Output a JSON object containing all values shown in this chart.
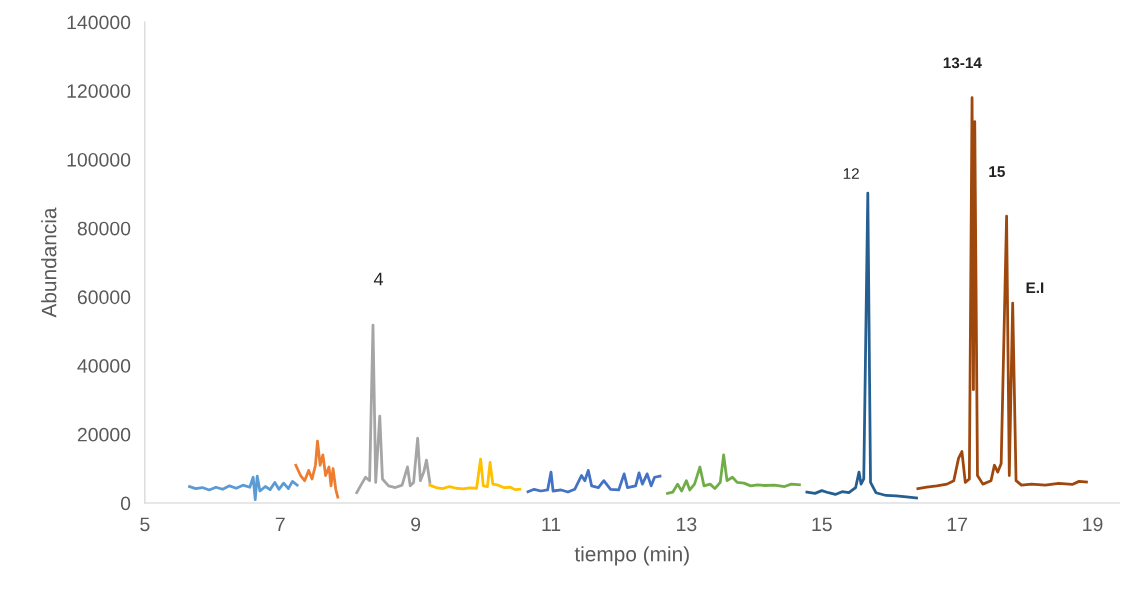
{
  "chart_data": {
    "type": "line",
    "xlabel": "tiempo (min)",
    "ylabel": "Abundancia",
    "xlim": [
      5,
      19.4
    ],
    "xticks": [
      5,
      7,
      9,
      11,
      13,
      15,
      17,
      19
    ],
    "ylim": [
      0,
      140000
    ],
    "yticks": [
      0,
      20000,
      40000,
      60000,
      80000,
      100000,
      120000,
      140000
    ],
    "grid": false,
    "marker": "none",
    "line_style": "solid",
    "series": [
      {
        "color": "#5b9bd5",
        "x": [
          5.66,
          5.75,
          5.85,
          5.95,
          6.05,
          6.15,
          6.25,
          6.35,
          6.45,
          6.55,
          6.6,
          6.63,
          6.66,
          6.7,
          6.78,
          6.85,
          6.92,
          6.98,
          7.05,
          7.12,
          7.18,
          7.25
        ],
        "values": [
          4800,
          4200,
          4500,
          3800,
          4600,
          4000,
          5000,
          4300,
          5200,
          4600,
          7500,
          1000,
          7800,
          3500,
          4800,
          3900,
          6000,
          4000,
          5800,
          4200,
          6300,
          5200
        ]
      },
      {
        "color": "#ed7d31",
        "x": [
          7.23,
          7.3,
          7.36,
          7.42,
          7.47,
          7.52,
          7.55,
          7.59,
          7.63,
          7.67,
          7.72,
          7.75,
          7.78,
          7.82,
          7.85
        ],
        "values": [
          11000,
          8000,
          6500,
          9500,
          7000,
          11000,
          18000,
          11000,
          14000,
          8000,
          10500,
          5000,
          10000,
          4000,
          1700
        ]
      },
      {
        "color": "#a5a5a5",
        "x": [
          8.13,
          8.2,
          8.26,
          8.32,
          8.37,
          8.41,
          8.47,
          8.51,
          8.6,
          8.7,
          8.8,
          8.88,
          8.92,
          8.97,
          9.03,
          9.07,
          9.12,
          9.16,
          9.21
        ],
        "values": [
          3000,
          5500,
          7500,
          6500,
          51800,
          6000,
          25300,
          7000,
          5000,
          4500,
          5200,
          10500,
          5000,
          6000,
          18900,
          6500,
          9000,
          12500,
          6000
        ]
      },
      {
        "color": "#ffc000",
        "x": [
          9.21,
          9.3,
          9.4,
          9.5,
          9.6,
          9.7,
          9.8,
          9.9,
          9.96,
          10.0,
          10.06,
          10.1,
          10.14,
          10.22,
          10.3,
          10.4,
          10.47,
          10.54
        ],
        "values": [
          5200,
          4500,
          4200,
          4800,
          4300,
          4100,
          4400,
          4300,
          12800,
          5000,
          4800,
          11800,
          5500,
          5200,
          4500,
          4600,
          3900,
          4000
        ]
      },
      {
        "color": "#4472c4",
        "x": [
          10.66,
          10.75,
          10.85,
          10.95,
          11.0,
          11.03,
          11.15,
          11.25,
          11.35,
          11.45,
          11.5,
          11.55,
          11.6,
          11.7,
          11.78,
          11.88,
          12.0,
          12.08,
          12.13,
          12.25,
          12.3,
          12.35,
          12.42,
          12.48,
          12.53,
          12.61
        ],
        "values": [
          3300,
          4000,
          3500,
          3800,
          9000,
          3500,
          3800,
          3200,
          4000,
          8000,
          6500,
          9500,
          5000,
          4500,
          6500,
          4000,
          3800,
          8500,
          4500,
          5000,
          8800,
          5500,
          8500,
          5000,
          7500,
          7800
        ]
      },
      {
        "color": "#70ad47",
        "x": [
          12.72,
          12.8,
          12.87,
          12.93,
          13.0,
          13.05,
          13.12,
          13.2,
          13.26,
          13.35,
          13.42,
          13.5,
          13.55,
          13.6,
          13.68,
          13.75,
          13.85,
          13.95,
          14.05,
          14.15,
          14.3,
          14.45,
          14.55,
          14.67
        ],
        "values": [
          2800,
          3200,
          5500,
          3500,
          6500,
          3800,
          5500,
          10500,
          5000,
          5500,
          4200,
          6000,
          14000,
          6500,
          7500,
          6000,
          5800,
          5000,
          5300,
          5100,
          5200,
          4800,
          5500,
          5300
        ]
      },
      {
        "color": "#255e91",
        "x": [
          14.78,
          14.9,
          15.0,
          15.1,
          15.2,
          15.3,
          15.4,
          15.5,
          15.55,
          15.58,
          15.62,
          15.68,
          15.72,
          15.8,
          15.95,
          16.1,
          16.25,
          16.4
        ],
        "values": [
          3200,
          2800,
          3600,
          3000,
          2500,
          3300,
          3000,
          4500,
          9000,
          5500,
          7000,
          90200,
          6000,
          3000,
          2200,
          2100,
          1800,
          1500
        ]
      },
      {
        "color": "#9e480e",
        "x": [
          16.42,
          16.55,
          16.7,
          16.85,
          16.95,
          17.02,
          17.07,
          17.12,
          17.18,
          17.22,
          17.24,
          17.26,
          17.3,
          17.38,
          17.5,
          17.55,
          17.6,
          17.65,
          17.73,
          17.77,
          17.82,
          17.87,
          17.95,
          18.1,
          18.3,
          18.5,
          18.7,
          18.8,
          18.91
        ],
        "values": [
          4200,
          4600,
          5000,
          5500,
          6500,
          13000,
          15000,
          6000,
          7000,
          118000,
          33000,
          111000,
          8000,
          5500,
          6500,
          11000,
          9000,
          11500,
          83500,
          8000,
          58200,
          6500,
          5200,
          5500,
          5200,
          5700,
          5400,
          6300,
          6100
        ]
      }
    ],
    "annotations": [
      {
        "text": "4",
        "x": 8.37,
        "y": 51800
      },
      {
        "text": "12",
        "x": 15.68,
        "y": 90200
      },
      {
        "text": "13-14",
        "x": 17.22,
        "y": 118000
      },
      {
        "text": "15",
        "x": 17.73,
        "y": 83500
      },
      {
        "text": "E.I",
        "x": 17.82,
        "y": 58200
      }
    ]
  }
}
